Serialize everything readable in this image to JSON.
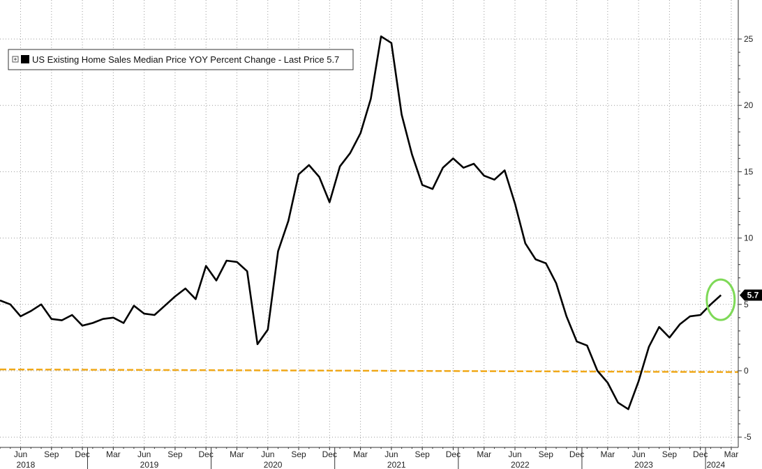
{
  "chart_data": {
    "type": "line",
    "title": "",
    "xlabel": "",
    "ylabel": "",
    "ylim": [
      -5,
      27
    ],
    "y_axis_side": "right",
    "y_ticks": [
      {
        "value": 25,
        "label": "25"
      },
      {
        "value": 20,
        "label": "20"
      },
      {
        "value": 15,
        "label": "15"
      },
      {
        "value": 10,
        "label": "10"
      },
      {
        "value": 5,
        "label": "5"
      },
      {
        "value": 0,
        "label": "0"
      },
      {
        "value": -5,
        "label": "-5"
      }
    ],
    "x_month_ticks": [
      {
        "date": "2018-06",
        "label": "Jun"
      },
      {
        "date": "2018-09",
        "label": "Sep"
      },
      {
        "date": "2018-12",
        "label": "Dec"
      },
      {
        "date": "2019-03",
        "label": "Mar"
      },
      {
        "date": "2019-06",
        "label": "Jun"
      },
      {
        "date": "2019-09",
        "label": "Sep"
      },
      {
        "date": "2019-12",
        "label": "Dec"
      },
      {
        "date": "2020-03",
        "label": "Mar"
      },
      {
        "date": "2020-06",
        "label": "Jun"
      },
      {
        "date": "2020-09",
        "label": "Sep"
      },
      {
        "date": "2020-12",
        "label": "Dec"
      },
      {
        "date": "2021-03",
        "label": "Mar"
      },
      {
        "date": "2021-06",
        "label": "Jun"
      },
      {
        "date": "2021-09",
        "label": "Sep"
      },
      {
        "date": "2021-12",
        "label": "Dec"
      },
      {
        "date": "2022-03",
        "label": "Mar"
      },
      {
        "date": "2022-06",
        "label": "Jun"
      },
      {
        "date": "2022-09",
        "label": "Sep"
      },
      {
        "date": "2022-12",
        "label": "Dec"
      },
      {
        "date": "2023-03",
        "label": "Mar"
      },
      {
        "date": "2023-06",
        "label": "Jun"
      },
      {
        "date": "2023-09",
        "label": "Sep"
      },
      {
        "date": "2023-12",
        "label": "Dec"
      },
      {
        "date": "2024-03",
        "label": "Mar"
      }
    ],
    "x_year_labels": [
      {
        "label": "2018",
        "center": "2018-07"
      },
      {
        "label": "2019",
        "center": "2019-07"
      },
      {
        "label": "2020",
        "center": "2020-07"
      },
      {
        "label": "2021",
        "center": "2021-07"
      },
      {
        "label": "2022",
        "center": "2022-07"
      },
      {
        "label": "2023",
        "center": "2023-07"
      },
      {
        "label": "2024",
        "center": "2024-02"
      }
    ],
    "x_year_boundaries": [
      "2019-01",
      "2020-01",
      "2021-01",
      "2022-01",
      "2023-01",
      "2024-01"
    ],
    "x_range": [
      "2018-04",
      "2024-04"
    ],
    "grid": true,
    "legend_position": "top-left",
    "series": [
      {
        "name": "US Existing Home Sales Median Price YOY Percent Change - Last Price 5.7",
        "color": "#000000",
        "x": [
          "2018-04",
          "2018-05",
          "2018-06",
          "2018-07",
          "2018-08",
          "2018-09",
          "2018-10",
          "2018-11",
          "2018-12",
          "2019-01",
          "2019-02",
          "2019-03",
          "2019-04",
          "2019-05",
          "2019-06",
          "2019-07",
          "2019-08",
          "2019-09",
          "2019-10",
          "2019-11",
          "2019-12",
          "2020-01",
          "2020-02",
          "2020-03",
          "2020-04",
          "2020-05",
          "2020-06",
          "2020-07",
          "2020-08",
          "2020-09",
          "2020-10",
          "2020-11",
          "2020-12",
          "2021-01",
          "2021-02",
          "2021-03",
          "2021-04",
          "2021-05",
          "2021-06",
          "2021-07",
          "2021-08",
          "2021-09",
          "2021-10",
          "2021-11",
          "2021-12",
          "2022-01",
          "2022-02",
          "2022-03",
          "2022-04",
          "2022-05",
          "2022-06",
          "2022-07",
          "2022-08",
          "2022-09",
          "2022-10",
          "2022-11",
          "2022-12",
          "2023-01",
          "2023-02",
          "2023-03",
          "2023-04",
          "2023-05",
          "2023-06",
          "2023-07",
          "2023-08",
          "2023-09",
          "2023-10",
          "2023-11",
          "2023-12",
          "2024-01",
          "2024-02"
        ],
        "values": [
          5.3,
          5.0,
          4.1,
          4.5,
          5.0,
          3.9,
          3.8,
          4.2,
          3.4,
          3.6,
          3.9,
          4.0,
          3.6,
          4.9,
          4.3,
          4.2,
          4.9,
          5.6,
          6.2,
          5.4,
          7.9,
          6.8,
          8.3,
          8.2,
          7.5,
          2.0,
          3.1,
          9.0,
          11.3,
          14.8,
          15.5,
          14.6,
          12.7,
          15.4,
          16.4,
          17.9,
          20.5,
          25.2,
          24.7,
          19.3,
          16.3,
          14.0,
          13.7,
          15.3,
          16.0,
          15.3,
          15.6,
          14.7,
          14.4,
          15.1,
          12.6,
          9.6,
          8.4,
          8.1,
          6.6,
          4.1,
          2.2,
          1.9,
          0.0,
          -0.9,
          -2.4,
          -2.9,
          -0.8,
          1.8,
          3.3,
          2.5,
          3.5,
          4.1,
          4.2,
          5.0,
          5.7
        ]
      },
      {
        "name": "",
        "color": "#f0a818",
        "style": "dashed",
        "x": [
          "2018-04",
          "2024-04"
        ],
        "values": [
          0.1,
          -0.1
        ]
      }
    ],
    "last_value_label": "5.7",
    "highlight_color": "#7ed957"
  }
}
